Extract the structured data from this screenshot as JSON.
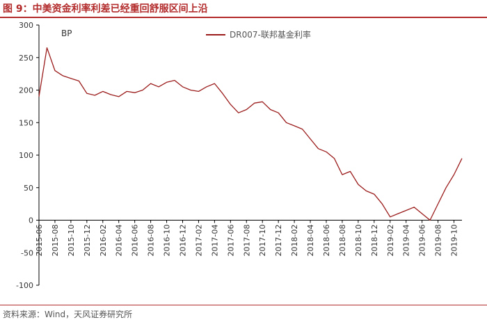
{
  "header": {
    "title": "图 9：中美资金利率利差已经重回舒服区间上沿"
  },
  "footer": {
    "source": "资料来源：Wind，天风证券研究所"
  },
  "colors": {
    "accent": "#b22a2a",
    "series": "#9b1b1b",
    "axis": "#000000"
  },
  "chart_data": {
    "type": "line",
    "unit_label": "BP",
    "ylim": [
      -100,
      300
    ],
    "yticks": [
      -100,
      -50,
      0,
      50,
      100,
      150,
      200,
      250,
      300
    ],
    "x_tick_labels": [
      "2015-06",
      "2015-08",
      "2015-10",
      "2015-12",
      "2016-02",
      "2016-04",
      "2016-06",
      "2016-08",
      "2016-10",
      "2016-12",
      "2017-02",
      "2017-04",
      "2017-06",
      "2017-08",
      "2017-10",
      "2017-12",
      "2018-02",
      "2018-04",
      "2018-06",
      "2018-08",
      "2018-10",
      "2018-12",
      "2019-02",
      "2019-04",
      "2019-06",
      "2019-08",
      "2019-10"
    ],
    "xlim": [
      "2015-06",
      "2019-11"
    ],
    "grid": false,
    "legend_position": "top-right",
    "series": [
      {
        "name": "DR007-联邦基金利率",
        "x": [
          "2015-06",
          "2015-07",
          "2015-08",
          "2015-09",
          "2015-10",
          "2015-11",
          "2015-12",
          "2016-01",
          "2016-02",
          "2016-03",
          "2016-04",
          "2016-05",
          "2016-06",
          "2016-07",
          "2016-08",
          "2016-09",
          "2016-10",
          "2016-11",
          "2016-12",
          "2017-01",
          "2017-02",
          "2017-03",
          "2017-04",
          "2017-05",
          "2017-06",
          "2017-07",
          "2017-08",
          "2017-09",
          "2017-10",
          "2017-11",
          "2017-12",
          "2018-01",
          "2018-02",
          "2018-03",
          "2018-04",
          "2018-05",
          "2018-06",
          "2018-07",
          "2018-08",
          "2018-09",
          "2018-10",
          "2018-11",
          "2018-12",
          "2019-01",
          "2019-02",
          "2019-03",
          "2019-04",
          "2019-05",
          "2019-06",
          "2019-07",
          "2019-08",
          "2019-09",
          "2019-10",
          "2019-11"
        ],
        "values": [
          190,
          265,
          230,
          222,
          218,
          214,
          195,
          192,
          198,
          193,
          190,
          198,
          196,
          200,
          210,
          205,
          212,
          215,
          205,
          200,
          198,
          205,
          210,
          195,
          178,
          165,
          170,
          180,
          182,
          170,
          165,
          150,
          145,
          140,
          125,
          110,
          105,
          95,
          70,
          75,
          55,
          45,
          40,
          25,
          5,
          10,
          15,
          20,
          10,
          0,
          25,
          50,
          70,
          95
        ]
      }
    ]
  }
}
